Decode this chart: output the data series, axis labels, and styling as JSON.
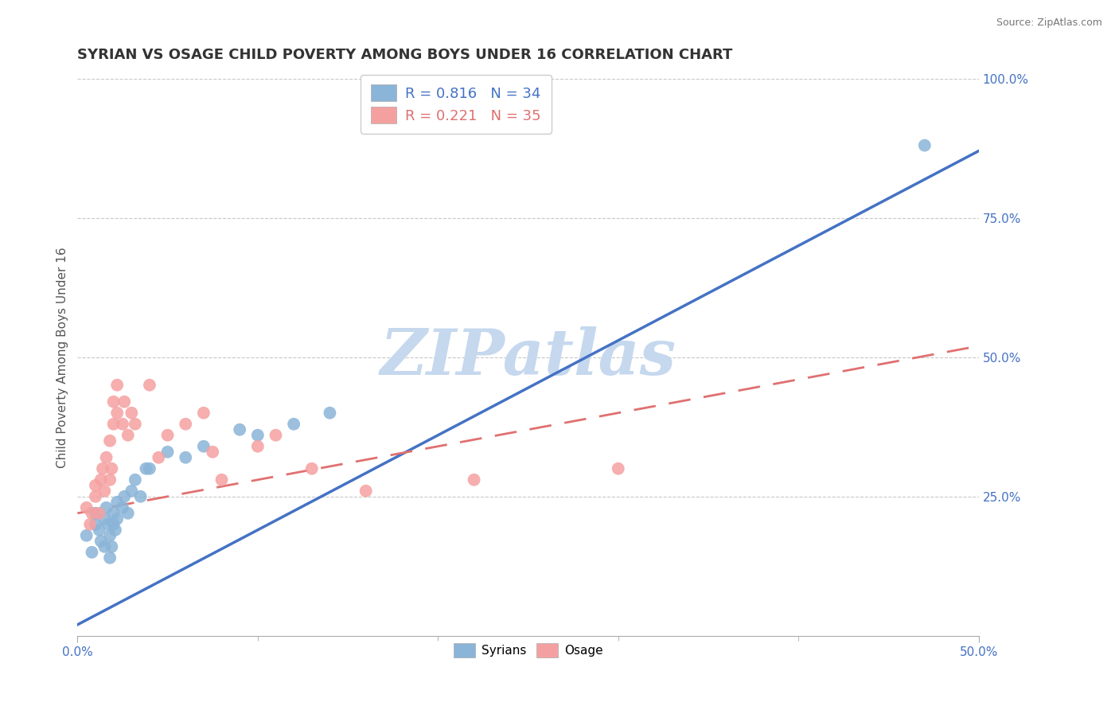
{
  "title": "SYRIAN VS OSAGE CHILD POVERTY AMONG BOYS UNDER 16 CORRELATION CHART",
  "source": "Source: ZipAtlas.com",
  "ylabel": "Child Poverty Among Boys Under 16",
  "xlim": [
    0.0,
    0.5
  ],
  "ylim": [
    -0.05,
    1.05
  ],
  "plot_ylim": [
    0.0,
    1.0
  ],
  "xticks": [
    0.0,
    0.5
  ],
  "xtick_labels": [
    "0.0%",
    "50.0%"
  ],
  "yticks": [
    0.25,
    0.5,
    0.75,
    1.0
  ],
  "ytick_labels": [
    "25.0%",
    "50.0%",
    "75.0%",
    "100.0%"
  ],
  "legend_r_blue": "R = 0.816",
  "legend_n_blue": "N = 34",
  "legend_r_pink": "R = 0.221",
  "legend_n_pink": "N = 35",
  "blue_color": "#8ab4d8",
  "pink_color": "#f5a0a0",
  "blue_line_color": "#4472c4",
  "pink_line_color": "#e07070",
  "axis_color": "#4472c4",
  "watermark": "ZIPatlas",
  "watermark_color": "#c5d8ee",
  "title_fontsize": 13,
  "blue_line_x0": 0.0,
  "blue_line_y0": 0.02,
  "blue_line_x1": 0.5,
  "blue_line_y1": 0.87,
  "pink_line_x0": 0.0,
  "pink_line_y0": 0.22,
  "pink_line_x1": 0.5,
  "pink_line_y1": 0.52,
  "blue_scatter_x": [
    0.005,
    0.008,
    0.01,
    0.01,
    0.012,
    0.013,
    0.015,
    0.015,
    0.016,
    0.017,
    0.018,
    0.018,
    0.019,
    0.02,
    0.02,
    0.021,
    0.022,
    0.022,
    0.025,
    0.026,
    0.028,
    0.03,
    0.032,
    0.035,
    0.038,
    0.04,
    0.05,
    0.06,
    0.07,
    0.09,
    0.1,
    0.12,
    0.14,
    0.47
  ],
  "blue_scatter_y": [
    0.18,
    0.15,
    0.2,
    0.22,
    0.19,
    0.17,
    0.21,
    0.16,
    0.23,
    0.2,
    0.14,
    0.18,
    0.16,
    0.22,
    0.2,
    0.19,
    0.21,
    0.24,
    0.23,
    0.25,
    0.22,
    0.26,
    0.28,
    0.25,
    0.3,
    0.3,
    0.33,
    0.32,
    0.34,
    0.37,
    0.36,
    0.38,
    0.4,
    0.88
  ],
  "pink_scatter_x": [
    0.005,
    0.007,
    0.008,
    0.01,
    0.01,
    0.012,
    0.013,
    0.014,
    0.015,
    0.016,
    0.018,
    0.018,
    0.019,
    0.02,
    0.02,
    0.022,
    0.022,
    0.025,
    0.026,
    0.028,
    0.03,
    0.032,
    0.04,
    0.045,
    0.05,
    0.06,
    0.07,
    0.075,
    0.08,
    0.1,
    0.11,
    0.13,
    0.16,
    0.22,
    0.3
  ],
  "pink_scatter_y": [
    0.23,
    0.2,
    0.22,
    0.25,
    0.27,
    0.22,
    0.28,
    0.3,
    0.26,
    0.32,
    0.28,
    0.35,
    0.3,
    0.38,
    0.42,
    0.4,
    0.45,
    0.38,
    0.42,
    0.36,
    0.4,
    0.38,
    0.45,
    0.32,
    0.36,
    0.38,
    0.4,
    0.33,
    0.28,
    0.34,
    0.36,
    0.3,
    0.26,
    0.28,
    0.3
  ]
}
